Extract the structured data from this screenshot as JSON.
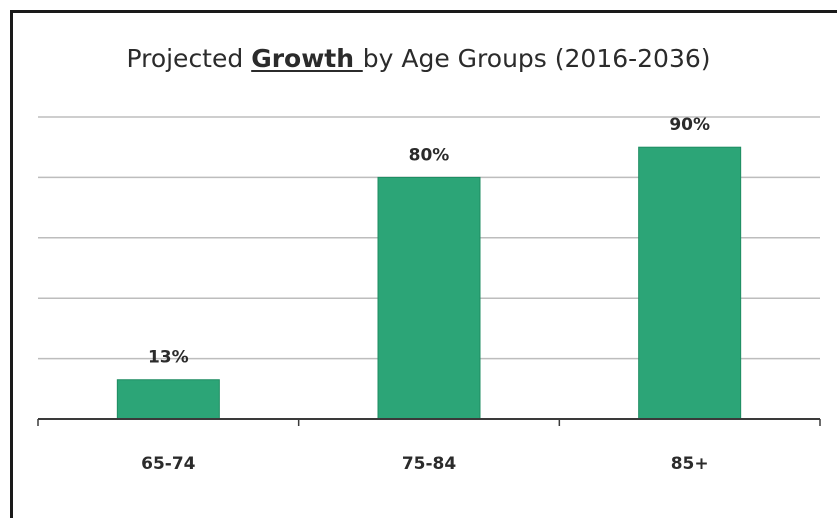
{
  "title": {
    "before": "Projected ",
    "emphasis": "Growth ",
    "after": "by Age Groups (2016-2036)"
  },
  "colors": {
    "bar": "#2ca577",
    "text": "#2b2b2b",
    "grid": "#bdbdbd"
  },
  "chart_data": {
    "type": "bar",
    "title": "Projected Growth by Age Groups (2016-2036)",
    "categories": [
      "65-74",
      "75-84",
      "85+"
    ],
    "values": [
      13,
      80,
      90
    ],
    "data_labels": [
      "13%",
      "80%",
      "90%"
    ],
    "unit": "%",
    "ylim": [
      0,
      100
    ],
    "gridlines": [
      20,
      40,
      60,
      80,
      100
    ],
    "grid": true,
    "legend": "none",
    "xlabel": "",
    "ylabel": ""
  }
}
